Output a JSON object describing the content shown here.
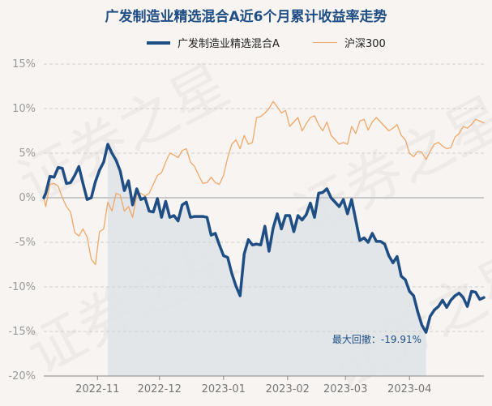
{
  "chart_data": {
    "type": "line",
    "title": "广发制造业精选混合A近6个月累计收益率走势",
    "series": [
      {
        "name": "广发制造业精选混合A",
        "color": "#1f4e84",
        "points": [
          [
            "2022-10-13",
            0.0
          ],
          [
            "2022-10-14",
            0.5
          ],
          [
            "2022-10-16",
            2.4
          ],
          [
            "2022-10-18",
            2.3
          ],
          [
            "2022-10-20",
            3.4
          ],
          [
            "2022-10-22",
            3.3
          ],
          [
            "2022-10-24",
            1.6
          ],
          [
            "2022-10-26",
            1.7
          ],
          [
            "2022-10-28",
            2.5
          ],
          [
            "2022-10-30",
            3.5
          ],
          [
            "2022-11-01",
            1.6
          ],
          [
            "2022-11-03",
            -0.2
          ],
          [
            "2022-11-05",
            0.0
          ],
          [
            "2022-11-07",
            1.8
          ],
          [
            "2022-11-09",
            3.1
          ],
          [
            "2022-11-11",
            4.0
          ],
          [
            "2022-11-13",
            6.0
          ],
          [
            "2022-11-15",
            5.0
          ],
          [
            "2022-11-17",
            4.2
          ],
          [
            "2022-11-19",
            3.0
          ],
          [
            "2022-11-21",
            0.8
          ],
          [
            "2022-11-23",
            1.9
          ],
          [
            "2022-11-25",
            -0.8
          ],
          [
            "2022-11-27",
            1.0
          ],
          [
            "2022-11-29",
            -0.2
          ],
          [
            "2022-12-01",
            0.0
          ],
          [
            "2022-12-03",
            -1.5
          ],
          [
            "2022-12-05",
            -1.6
          ],
          [
            "2022-12-07",
            -0.1
          ],
          [
            "2022-12-09",
            -2.2
          ],
          [
            "2022-12-11",
            -0.4
          ],
          [
            "2022-12-13",
            -2.2
          ],
          [
            "2022-12-15",
            -2.0
          ],
          [
            "2022-12-17",
            -2.6
          ],
          [
            "2022-12-19",
            -0.8
          ],
          [
            "2022-12-21",
            -0.5
          ],
          [
            "2022-12-23",
            -2.2
          ],
          [
            "2022-12-25",
            -2.1
          ],
          [
            "2022-12-27",
            -2.1
          ],
          [
            "2022-12-29",
            -2.1
          ],
          [
            "2022-12-31",
            -2.2
          ],
          [
            "2023-01-02",
            -4.2
          ],
          [
            "2023-01-04",
            -4.0
          ],
          [
            "2023-01-06",
            -5.3
          ],
          [
            "2023-01-08",
            -6.5
          ],
          [
            "2023-01-10",
            -6.7
          ],
          [
            "2023-01-12",
            -8.5
          ],
          [
            "2023-01-14",
            -9.9
          ],
          [
            "2023-01-16",
            -11.0
          ],
          [
            "2023-01-18",
            -6.3
          ],
          [
            "2023-01-20",
            -4.7
          ],
          [
            "2023-01-22",
            -5.3
          ],
          [
            "2023-01-24",
            -5.2
          ],
          [
            "2023-01-26",
            -5.3
          ],
          [
            "2023-01-28",
            -3.2
          ],
          [
            "2023-01-30",
            -6.0
          ],
          [
            "2023-02-01",
            -3.4
          ],
          [
            "2023-02-03",
            -1.8
          ],
          [
            "2023-02-05",
            -3.5
          ],
          [
            "2023-02-07",
            -2.0
          ],
          [
            "2023-02-09",
            -2.0
          ],
          [
            "2023-02-11",
            -3.8
          ],
          [
            "2023-02-13",
            -2.0
          ],
          [
            "2023-02-15",
            -2.5
          ],
          [
            "2023-02-17",
            -1.9
          ],
          [
            "2023-02-19",
            -0.6
          ],
          [
            "2023-02-21",
            -2.2
          ],
          [
            "2023-02-23",
            0.5
          ],
          [
            "2023-02-25",
            0.6
          ],
          [
            "2023-02-27",
            1.0
          ],
          [
            "2023-03-01",
            0.0
          ],
          [
            "2023-03-03",
            -0.5
          ],
          [
            "2023-03-05",
            -1.0
          ],
          [
            "2023-03-07",
            -0.2
          ],
          [
            "2023-03-09",
            -1.8
          ],
          [
            "2023-03-11",
            -0.2
          ],
          [
            "2023-03-13",
            -2.5
          ],
          [
            "2023-03-15",
            -4.8
          ],
          [
            "2023-03-17",
            -4.5
          ],
          [
            "2023-03-19",
            -5.0
          ],
          [
            "2023-03-21",
            -4.0
          ],
          [
            "2023-03-23",
            -4.9
          ],
          [
            "2023-03-25",
            -4.9
          ],
          [
            "2023-03-27",
            -5.2
          ],
          [
            "2023-03-29",
            -6.5
          ],
          [
            "2023-03-31",
            -7.3
          ],
          [
            "2023-04-02",
            -6.6
          ],
          [
            "2023-04-04",
            -8.8
          ],
          [
            "2023-04-06",
            -9.2
          ],
          [
            "2023-04-08",
            -10.5
          ],
          [
            "2023-04-10",
            -11.0
          ],
          [
            "2023-04-12",
            -12.8
          ],
          [
            "2023-04-14",
            -14.3
          ],
          [
            "2023-04-16",
            -15.1
          ],
          [
            "2023-04-18",
            -13.3
          ],
          [
            "2023-04-20",
            -12.6
          ],
          [
            "2023-04-22",
            -12.2
          ],
          [
            "2023-04-24",
            -11.5
          ],
          [
            "2023-04-26",
            -12.3
          ],
          [
            "2023-04-28",
            -11.5
          ],
          [
            "2023-04-30",
            -11.0
          ],
          [
            "2023-05-02",
            -10.7
          ],
          [
            "2023-05-04",
            -11.2
          ],
          [
            "2023-05-06",
            -12.2
          ],
          [
            "2023-05-08",
            -10.5
          ],
          [
            "2023-05-10",
            -10.6
          ],
          [
            "2023-05-12",
            -11.4
          ],
          [
            "2023-05-14",
            -11.2
          ]
        ]
      },
      {
        "name": "沪深300",
        "color": "#f0a868",
        "points": [
          [
            "2022-10-13",
            0.0
          ],
          [
            "2022-10-14",
            -1.0
          ],
          [
            "2022-10-16",
            1.5
          ],
          [
            "2022-10-18",
            1.6
          ],
          [
            "2022-10-20",
            1.3
          ],
          [
            "2022-10-22",
            0.0
          ],
          [
            "2022-10-24",
            -1.0
          ],
          [
            "2022-10-26",
            -1.6
          ],
          [
            "2022-10-28",
            -3.9
          ],
          [
            "2022-10-30",
            -4.3
          ],
          [
            "2022-11-01",
            -3.5
          ],
          [
            "2022-11-03",
            -4.4
          ],
          [
            "2022-11-05",
            -6.9
          ],
          [
            "2022-11-07",
            -7.5
          ],
          [
            "2022-11-09",
            -3.8
          ],
          [
            "2022-11-11",
            -3.5
          ],
          [
            "2022-11-13",
            -0.5
          ],
          [
            "2022-11-15",
            -1.5
          ],
          [
            "2022-11-17",
            0.5
          ],
          [
            "2022-11-19",
            0.3
          ],
          [
            "2022-11-21",
            -1.5
          ],
          [
            "2022-11-23",
            -1.0
          ],
          [
            "2022-11-25",
            -2.2
          ],
          [
            "2022-11-27",
            0.3
          ],
          [
            "2022-11-29",
            0.5
          ],
          [
            "2022-12-01",
            0.2
          ],
          [
            "2022-12-03",
            0.5
          ],
          [
            "2022-12-05",
            1.5
          ],
          [
            "2022-12-07",
            2.5
          ],
          [
            "2022-12-09",
            2.8
          ],
          [
            "2022-12-11",
            4.0
          ],
          [
            "2022-12-13",
            5.0
          ],
          [
            "2022-12-15",
            4.8
          ],
          [
            "2022-12-17",
            4.5
          ],
          [
            "2022-12-19",
            5.3
          ],
          [
            "2022-12-21",
            5.5
          ],
          [
            "2022-12-23",
            4.0
          ],
          [
            "2022-12-25",
            3.5
          ],
          [
            "2022-12-27",
            2.5
          ],
          [
            "2022-12-29",
            1.6
          ],
          [
            "2022-12-31",
            1.7
          ],
          [
            "2023-01-02",
            2.3
          ],
          [
            "2023-01-04",
            1.7
          ],
          [
            "2023-01-06",
            1.5
          ],
          [
            "2023-01-08",
            2.5
          ],
          [
            "2023-01-10",
            4.5
          ],
          [
            "2023-01-12",
            6.0
          ],
          [
            "2023-01-14",
            6.5
          ],
          [
            "2023-01-16",
            5.5
          ],
          [
            "2023-01-18",
            7.0
          ],
          [
            "2023-01-20",
            6.0
          ],
          [
            "2023-01-22",
            6.2
          ],
          [
            "2023-01-24",
            9.0
          ],
          [
            "2023-01-26",
            9.1
          ],
          [
            "2023-01-28",
            9.5
          ],
          [
            "2023-01-30",
            10.0
          ],
          [
            "2023-02-01",
            10.8
          ],
          [
            "2023-02-03",
            10.2
          ],
          [
            "2023-02-05",
            9.5
          ],
          [
            "2023-02-07",
            9.8
          ],
          [
            "2023-02-09",
            8.0
          ],
          [
            "2023-02-11",
            8.5
          ],
          [
            "2023-02-13",
            9.0
          ],
          [
            "2023-02-15",
            7.5
          ],
          [
            "2023-02-17",
            8.3
          ],
          [
            "2023-02-19",
            9.0
          ],
          [
            "2023-02-21",
            9.2
          ],
          [
            "2023-02-23",
            8.2
          ],
          [
            "2023-02-25",
            7.5
          ],
          [
            "2023-02-27",
            8.5
          ],
          [
            "2023-03-01",
            7.0
          ],
          [
            "2023-03-03",
            6.5
          ],
          [
            "2023-03-05",
            6.0
          ],
          [
            "2023-03-07",
            6.2
          ],
          [
            "2023-03-09",
            6.0
          ],
          [
            "2023-03-11",
            8.0
          ],
          [
            "2023-03-13",
            7.2
          ],
          [
            "2023-03-15",
            8.6
          ],
          [
            "2023-03-17",
            8.8
          ],
          [
            "2023-03-19",
            7.6
          ],
          [
            "2023-03-21",
            8.5
          ],
          [
            "2023-03-23",
            9.0
          ],
          [
            "2023-03-25",
            8.5
          ],
          [
            "2023-03-27",
            8.0
          ],
          [
            "2023-03-29",
            7.5
          ],
          [
            "2023-03-31",
            7.8
          ],
          [
            "2023-04-02",
            8.2
          ],
          [
            "2023-04-04",
            7.0
          ],
          [
            "2023-04-06",
            6.5
          ],
          [
            "2023-04-08",
            5.0
          ],
          [
            "2023-04-10",
            4.6
          ],
          [
            "2023-04-12",
            5.2
          ],
          [
            "2023-04-14",
            5.1
          ],
          [
            "2023-04-16",
            4.3
          ],
          [
            "2023-04-18",
            5.2
          ],
          [
            "2023-04-20",
            6.0
          ],
          [
            "2023-04-22",
            6.2
          ],
          [
            "2023-04-24",
            5.8
          ],
          [
            "2023-04-26",
            5.5
          ],
          [
            "2023-04-28",
            5.6
          ],
          [
            "2023-04-30",
            6.8
          ],
          [
            "2023-05-02",
            7.2
          ],
          [
            "2023-05-04",
            8.0
          ],
          [
            "2023-05-06",
            7.8
          ],
          [
            "2023-05-08",
            8.2
          ],
          [
            "2023-05-10",
            8.8
          ],
          [
            "2023-05-12",
            8.6
          ],
          [
            "2023-05-14",
            8.4
          ]
        ]
      }
    ],
    "x_range": [
      "2022-10-13",
      "2023-05-14"
    ],
    "x_ticks": [
      {
        "date": "2022-11-08",
        "label": "2022-11"
      },
      {
        "date": "2022-12-08",
        "label": "2022-12"
      },
      {
        "date": "2023-01-08",
        "label": "2023-01"
      },
      {
        "date": "2023-02-08",
        "label": "2023-02"
      },
      {
        "date": "2023-03-08",
        "label": "2023-03"
      },
      {
        "date": "2023-04-08",
        "label": "2023-04"
      }
    ],
    "ylim": [
      -20,
      15
    ],
    "y_ticks": [
      15,
      10,
      5,
      0,
      -5,
      -10,
      -15,
      -20
    ],
    "y_tick_labels": [
      "15%",
      "10%",
      "5%",
      "0%",
      "-5%",
      "-10%",
      "-15%",
      "-20%"
    ],
    "grid": "horizontal-dashed",
    "legend_position": "top-center",
    "drawdown_shade": {
      "from": "2022-11-13",
      "to": "2023-04-16",
      "color": "#dfe4e8"
    },
    "annotation": {
      "label": "最大回撤：",
      "value": "-19.91%",
      "color": "#1f4e84"
    }
  },
  "watermark": "证券之星"
}
